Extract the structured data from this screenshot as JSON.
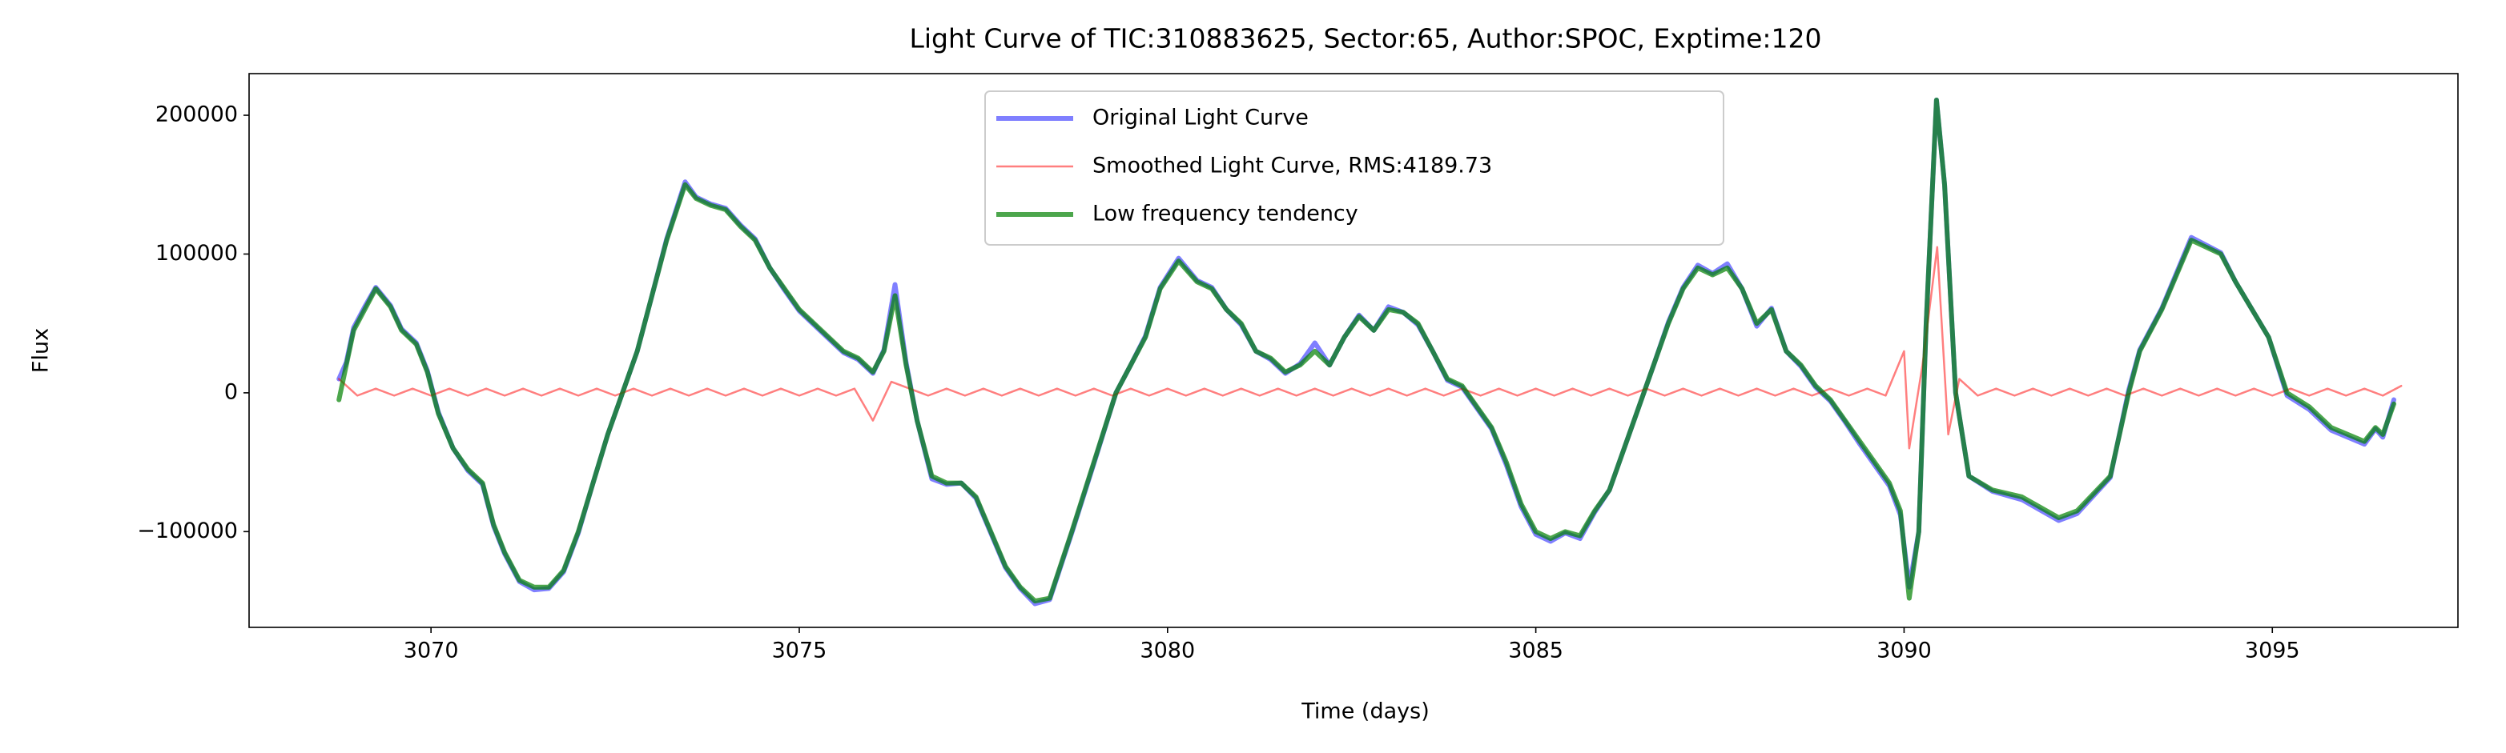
{
  "chart_data": {
    "type": "line",
    "title": "Light Curve of TIC:310883625, Sector:65, Author:SPOC, Exptime:120",
    "x_label": "Time (days)",
    "y_label": "Flux",
    "xlim": [
      3067.53,
      3097.52
    ],
    "ylim": [
      -169000,
      230000
    ],
    "xticks": [
      3070,
      3075,
      3080,
      3085,
      3090,
      3095
    ],
    "yticks": [
      {
        "value": -100000,
        "label": "−100000"
      },
      0,
      100000,
      200000
    ],
    "grid": false,
    "legend": "upper center",
    "series": [
      {
        "name": "Original Light Curve",
        "color": "#0000ff",
        "alpha": 0.5,
        "linewidth": 6,
        "x": [
          3068.75,
          3068.85,
          3068.95,
          3069.1,
          3069.25,
          3069.45,
          3069.6,
          3069.8,
          3069.95,
          3070.1,
          3070.3,
          3070.5,
          3070.7,
          3070.85,
          3071.0,
          3071.2,
          3071.4,
          3071.6,
          3071.8,
          3072.0,
          3072.2,
          3072.4,
          3072.6,
          3072.8,
          3073.0,
          3073.2,
          3073.45,
          3073.6,
          3073.8,
          3074.0,
          3074.2,
          3074.4,
          3074.6,
          3074.8,
          3075.0,
          3075.2,
          3075.4,
          3075.6,
          3075.8,
          3076.0,
          3076.15,
          3076.3,
          3076.45,
          3076.6,
          3076.8,
          3077.0,
          3077.2,
          3077.4,
          3077.6,
          3077.8,
          3078.0,
          3078.2,
          3078.4,
          3078.7,
          3079.0,
          3079.3,
          3079.5,
          3079.7,
          3079.9,
          3080.15,
          3080.4,
          3080.6,
          3080.8,
          3081.0,
          3081.2,
          3081.4,
          3081.6,
          3081.8,
          3082.0,
          3082.2,
          3082.4,
          3082.6,
          3082.8,
          3083.0,
          3083.2,
          3083.4,
          3083.6,
          3083.8,
          3084.0,
          3084.2,
          3084.4,
          3084.6,
          3084.8,
          3085.0,
          3085.2,
          3085.4,
          3085.6,
          3085.8,
          3086.0,
          3086.2,
          3086.4,
          3086.6,
          3086.8,
          3087.0,
          3087.2,
          3087.4,
          3087.6,
          3087.8,
          3088.0,
          3088.2,
          3088.4,
          3088.6,
          3088.8,
          3089.0,
          3089.2,
          3089.4,
          3089.6,
          3089.8,
          3089.95,
          3090.07,
          3090.2,
          3090.3,
          3090.44,
          3090.55,
          3090.7,
          3090.88,
          3091.2,
          3091.6,
          3092.1,
          3092.35,
          3092.8,
          3093.05,
          3093.2,
          3093.5,
          3093.9,
          3094.3,
          3094.5,
          3094.95,
          3095.2,
          3095.5,
          3095.8,
          3096.25,
          3096.4,
          3096.5,
          3096.65
        ],
        "values": [
          10000,
          22000,
          47000,
          62000,
          76000,
          63000,
          46000,
          36000,
          16000,
          -14000,
          -40000,
          -56000,
          -66000,
          -96000,
          -116000,
          -136000,
          -142000,
          -141000,
          -129000,
          -101000,
          -65000,
          -30000,
          0,
          30000,
          70000,
          111000,
          152000,
          141000,
          136000,
          133000,
          121000,
          111000,
          90000,
          74000,
          59000,
          49000,
          39000,
          29000,
          24000,
          14000,
          31000,
          78000,
          22000,
          -20000,
          -62000,
          -66000,
          -65000,
          -76000,
          -101000,
          -126000,
          -141000,
          -152000,
          -149000,
          -101000,
          -51000,
          0,
          20000,
          41000,
          76000,
          97000,
          81000,
          76000,
          60000,
          49000,
          30000,
          24000,
          14000,
          21000,
          36000,
          20000,
          40000,
          56000,
          45000,
          62000,
          58000,
          49000,
          30000,
          9000,
          4000,
          -11000,
          -26000,
          -52000,
          -82000,
          -102000,
          -107000,
          -101000,
          -105000,
          -86000,
          -70000,
          -40000,
          -10000,
          20000,
          51000,
          76000,
          92000,
          86000,
          93000,
          75000,
          48000,
          61000,
          30000,
          19000,
          4000,
          -6000,
          -21000,
          -37000,
          -52000,
          -67000,
          -88000,
          -140000,
          -100000,
          50000,
          211000,
          150000,
          0,
          -60000,
          -71000,
          -77000,
          -92000,
          -87000,
          -61000,
          2000,
          31000,
          61000,
          112000,
          101000,
          80000,
          40000,
          -2000,
          -12000,
          -27000,
          -37000,
          -26000,
          -32000,
          -5000
        ]
      },
      {
        "name": "Smoothed Light Curve, RMS:4189.73",
        "color": "#ff0000",
        "alpha": 0.5,
        "linewidth": 2.5,
        "x": [
          3068.75,
          3069,
          3069.25,
          3069.5,
          3069.75,
          3070,
          3070.25,
          3070.5,
          3070.75,
          3071,
          3071.25,
          3071.5,
          3071.75,
          3072,
          3072.25,
          3072.5,
          3072.75,
          3073,
          3073.25,
          3073.5,
          3073.75,
          3074,
          3074.25,
          3074.5,
          3074.75,
          3075,
          3075.25,
          3075.5,
          3075.75,
          3076,
          3076.25,
          3076.5,
          3076.75,
          3077,
          3077.25,
          3077.5,
          3077.75,
          3078,
          3078.25,
          3078.5,
          3078.75,
          3079,
          3079.25,
          3079.5,
          3079.75,
          3080,
          3080.25,
          3080.5,
          3080.75,
          3081,
          3081.25,
          3081.5,
          3081.75,
          3082,
          3082.25,
          3082.5,
          3082.75,
          3083,
          3083.25,
          3083.5,
          3083.75,
          3084,
          3084.25,
          3084.5,
          3084.75,
          3085,
          3085.25,
          3085.5,
          3085.75,
          3086,
          3086.25,
          3086.5,
          3086.75,
          3087,
          3087.25,
          3087.5,
          3087.75,
          3088,
          3088.25,
          3088.5,
          3088.75,
          3089,
          3089.25,
          3089.5,
          3089.75,
          3090,
          3090.07,
          3090.25,
          3090.45,
          3090.5,
          3090.6,
          3090.75,
          3091,
          3091.25,
          3091.5,
          3091.75,
          3092,
          3092.25,
          3092.5,
          3092.75,
          3093,
          3093.25,
          3093.5,
          3093.75,
          3094,
          3094.25,
          3094.5,
          3094.75,
          3095,
          3095.25,
          3095.5,
          3095.75,
          3096,
          3096.25,
          3096.5,
          3096.75
        ],
        "values": [
          10000,
          -2000,
          3000,
          -2000,
          3000,
          -2000,
          3000,
          -2000,
          3000,
          -2000,
          3000,
          -2000,
          3000,
          -2000,
          3000,
          -2000,
          3000,
          -2000,
          3000,
          -2000,
          3000,
          -2000,
          3000,
          -2000,
          3000,
          -2000,
          3000,
          -2000,
          3000,
          -20000,
          8000,
          3000,
          -2000,
          3000,
          -2000,
          3000,
          -2000,
          3000,
          -2000,
          3000,
          -2000,
          3000,
          -2000,
          3000,
          -2000,
          3000,
          -2000,
          3000,
          -2000,
          3000,
          -2000,
          3000,
          -2000,
          3000,
          -2000,
          3000,
          -2000,
          3000,
          -2000,
          3000,
          -2000,
          3000,
          -2000,
          3000,
          -2000,
          3000,
          -2000,
          3000,
          -2000,
          3000,
          -2000,
          3000,
          -2000,
          3000,
          -2000,
          3000,
          -2000,
          3000,
          -2000,
          3000,
          -2000,
          3000,
          -2000,
          3000,
          -2000,
          30000,
          -40000,
          20000,
          105000,
          60000,
          -30000,
          10000,
          -2000,
          3000,
          -2000,
          3000,
          -2000,
          3000,
          -2000,
          3000,
          -2000,
          3000,
          -2000,
          3000,
          -2000,
          3000,
          -2000,
          3000,
          -2000,
          3000,
          -2000,
          3000,
          -2000,
          3000,
          -2000,
          5000
        ]
      },
      {
        "name": "Low frequency tendency",
        "color": "#008000",
        "alpha": 0.7,
        "linewidth": 6,
        "x": [
          3068.75,
          3068.85,
          3068.95,
          3069.1,
          3069.25,
          3069.45,
          3069.6,
          3069.8,
          3069.95,
          3070.1,
          3070.3,
          3070.5,
          3070.7,
          3070.85,
          3071.0,
          3071.2,
          3071.4,
          3071.6,
          3071.8,
          3072.0,
          3072.2,
          3072.4,
          3072.6,
          3072.8,
          3073.0,
          3073.2,
          3073.45,
          3073.6,
          3073.8,
          3074.0,
          3074.2,
          3074.4,
          3074.6,
          3074.8,
          3075.0,
          3075.2,
          3075.4,
          3075.6,
          3075.8,
          3076.0,
          3076.15,
          3076.3,
          3076.45,
          3076.6,
          3076.8,
          3077.0,
          3077.2,
          3077.4,
          3077.6,
          3077.8,
          3078.0,
          3078.2,
          3078.4,
          3078.7,
          3079.0,
          3079.3,
          3079.5,
          3079.7,
          3079.9,
          3080.15,
          3080.4,
          3080.6,
          3080.8,
          3081.0,
          3081.2,
          3081.4,
          3081.6,
          3081.8,
          3082.0,
          3082.2,
          3082.4,
          3082.6,
          3082.8,
          3083.0,
          3083.2,
          3083.4,
          3083.6,
          3083.8,
          3084.0,
          3084.2,
          3084.4,
          3084.6,
          3084.8,
          3085.0,
          3085.2,
          3085.4,
          3085.6,
          3085.8,
          3086.0,
          3086.2,
          3086.4,
          3086.6,
          3086.8,
          3087.0,
          3087.2,
          3087.4,
          3087.6,
          3087.8,
          3088.0,
          3088.2,
          3088.4,
          3088.6,
          3088.8,
          3089.0,
          3089.2,
          3089.4,
          3089.6,
          3089.8,
          3089.95,
          3090.07,
          3090.2,
          3090.3,
          3090.44,
          3090.55,
          3090.7,
          3090.88,
          3091.2,
          3091.6,
          3092.1,
          3092.35,
          3092.8,
          3093.05,
          3093.2,
          3093.5,
          3093.9,
          3094.3,
          3094.5,
          3094.95,
          3095.2,
          3095.5,
          3095.8,
          3096.25,
          3096.4,
          3096.5,
          3096.65
        ],
        "values": [
          -5000,
          20000,
          45000,
          60000,
          75000,
          62000,
          45000,
          35000,
          15000,
          -15000,
          -40000,
          -55000,
          -65000,
          -95000,
          -115000,
          -135000,
          -140000,
          -140000,
          -128000,
          -100000,
          -65000,
          -30000,
          0,
          30000,
          70000,
          110000,
          150000,
          140000,
          135000,
          132000,
          120000,
          110000,
          90000,
          75000,
          60000,
          50000,
          40000,
          30000,
          25000,
          15000,
          30000,
          70000,
          20000,
          -20000,
          -60000,
          -65000,
          -65000,
          -75000,
          -100000,
          -125000,
          -140000,
          -150000,
          -148000,
          -100000,
          -50000,
          0,
          20000,
          40000,
          75000,
          95000,
          80000,
          75000,
          60000,
          50000,
          30000,
          25000,
          15000,
          20000,
          30000,
          20000,
          40000,
          55000,
          45000,
          60000,
          58000,
          50000,
          30000,
          10000,
          5000,
          -10000,
          -25000,
          -50000,
          -80000,
          -100000,
          -105000,
          -100000,
          -103000,
          -85000,
          -70000,
          -40000,
          -10000,
          20000,
          50000,
          75000,
          90000,
          85000,
          90000,
          75000,
          50000,
          60000,
          30000,
          20000,
          5000,
          -5000,
          -20000,
          -35000,
          -50000,
          -65000,
          -85000,
          -148000,
          -100000,
          50000,
          211000,
          150000,
          0,
          -60000,
          -70000,
          -75000,
          -90000,
          -85000,
          -60000,
          0,
          30000,
          60000,
          110000,
          100000,
          80000,
          40000,
          0,
          -10000,
          -25000,
          -35000,
          -25000,
          -30000,
          -8000
        ]
      }
    ]
  }
}
